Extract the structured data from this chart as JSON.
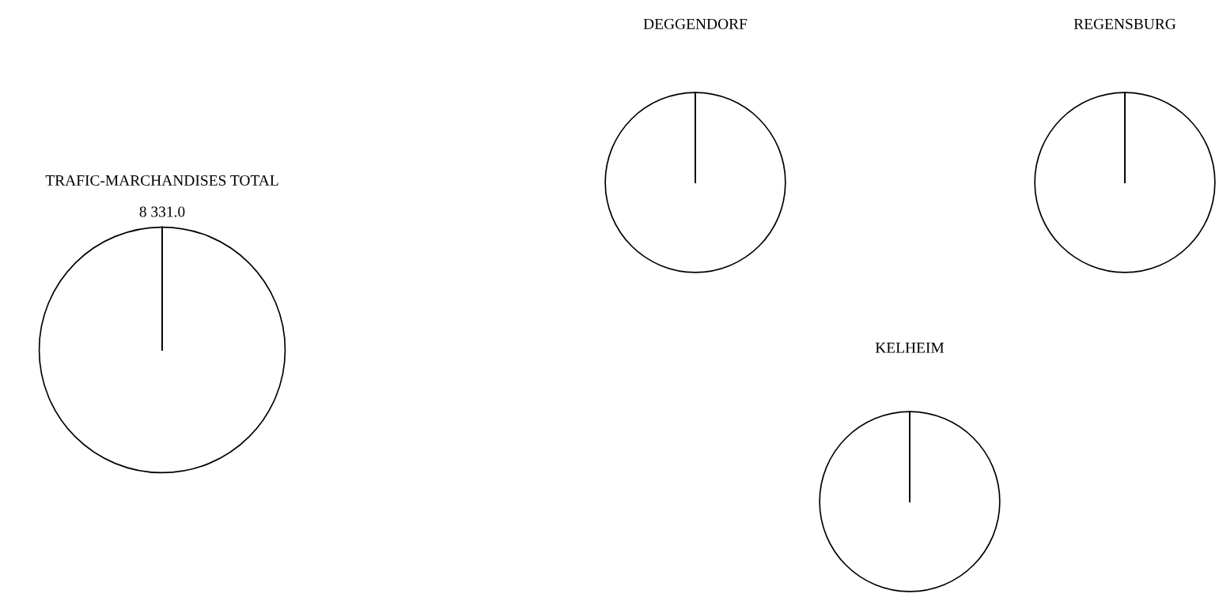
{
  "chart_data": [
    {
      "type": "pie",
      "title": "TRAFIC-MARCHANDISES TOTAL",
      "categories": [
        null
      ],
      "values": [
        8331.0
      ],
      "colors": [
        "#ffffff"
      ],
      "value_labels": [
        "8 331.0"
      ]
    },
    {
      "type": "pie",
      "title": "DEGGENDORF",
      "categories": [
        null
      ],
      "values": [
        100
      ],
      "colors": [
        "#ffffff"
      ]
    },
    {
      "type": "pie",
      "title": "REGENSBURG",
      "categories": [
        null
      ],
      "values": [
        100
      ],
      "colors": [
        "#ffffff"
      ]
    },
    {
      "type": "pie",
      "title": "KELHEIM",
      "categories": [
        null
      ],
      "values": [
        100
      ],
      "colors": [
        "#ffffff"
      ]
    }
  ]
}
